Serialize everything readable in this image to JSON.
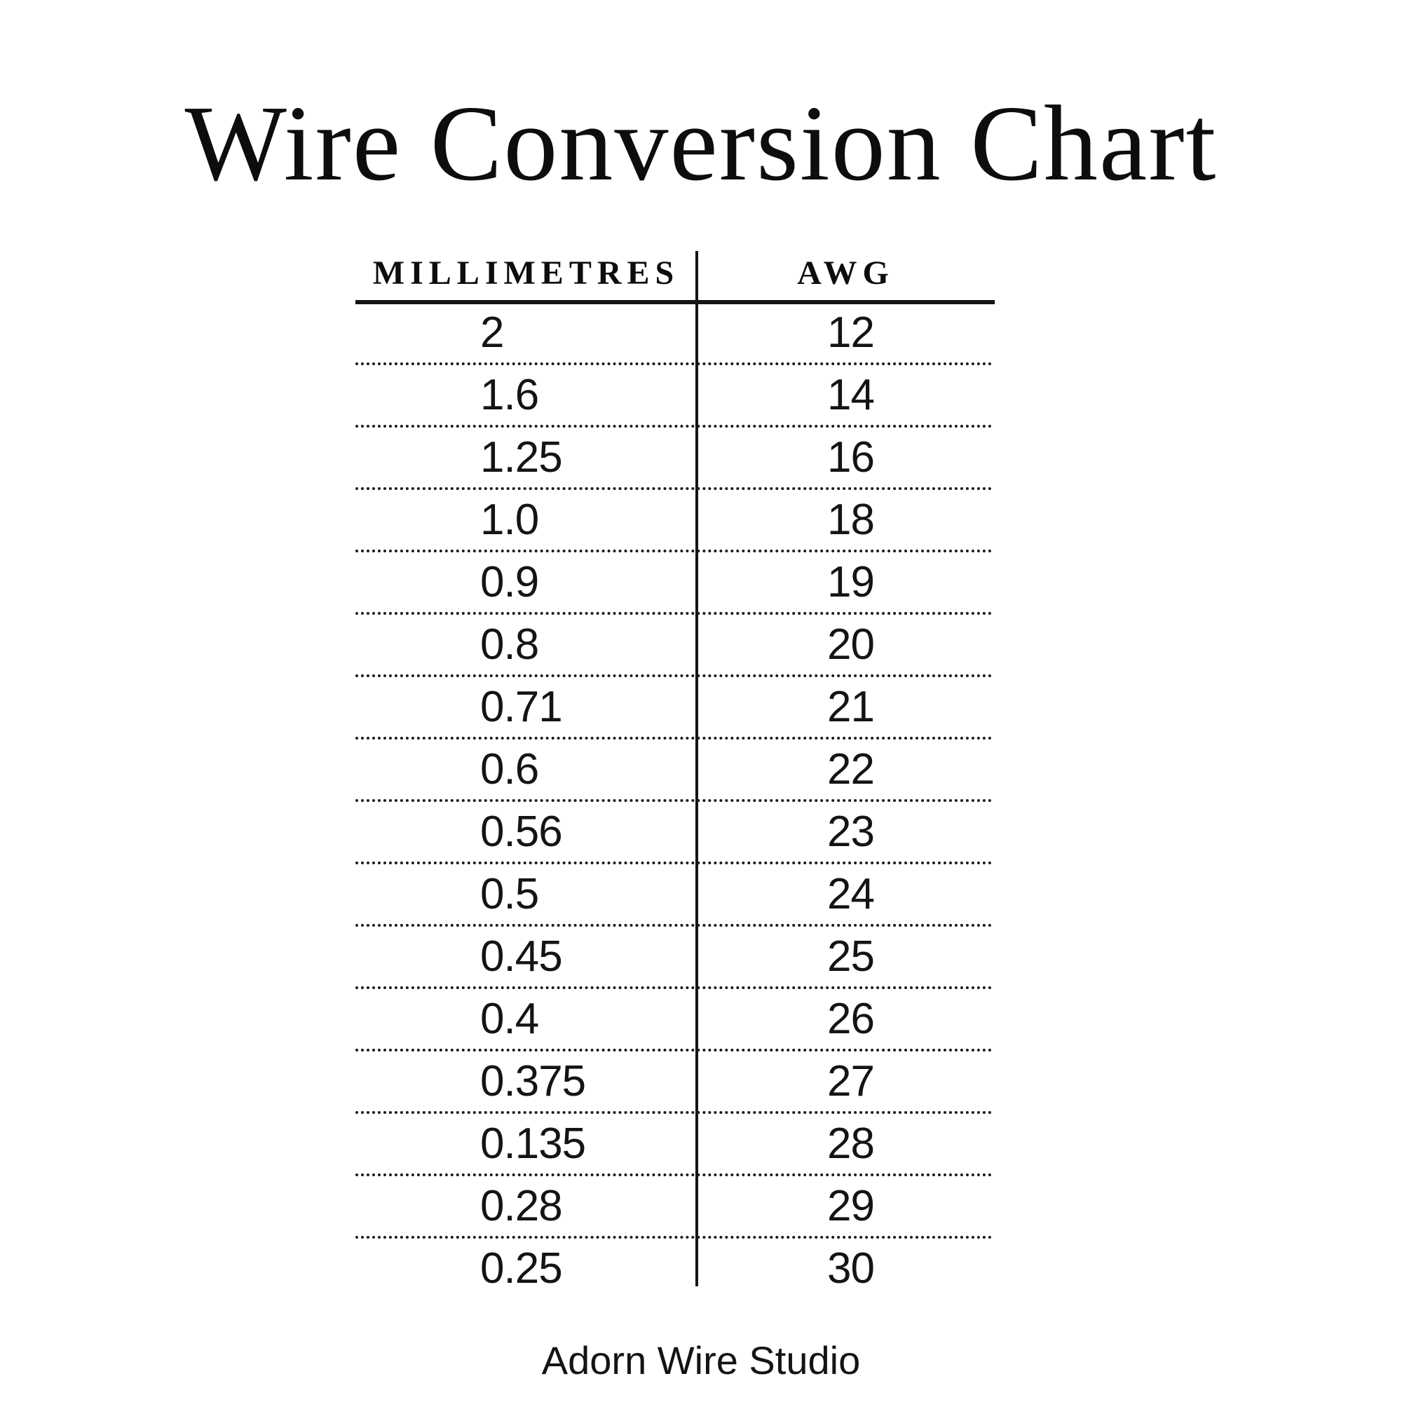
{
  "title": "Wire Conversion Chart",
  "footer": "Adorn Wire Studio",
  "colors": {
    "background": "#ffffff",
    "text": "#111111",
    "rule": "#141414"
  },
  "chart_data": {
    "type": "table",
    "title": "Wire Conversion Chart",
    "columns": [
      "MILLIMETRES",
      "AWG"
    ],
    "rows": [
      [
        "2",
        "12"
      ],
      [
        "1.6",
        "14"
      ],
      [
        "1.25",
        "16"
      ],
      [
        "1.0",
        "18"
      ],
      [
        "0.9",
        "19"
      ],
      [
        "0.8",
        "20"
      ],
      [
        "0.71",
        "21"
      ],
      [
        "0.6",
        "22"
      ],
      [
        "0.56",
        "23"
      ],
      [
        "0.5",
        "24"
      ],
      [
        "0.45",
        "25"
      ],
      [
        "0.4",
        "26"
      ],
      [
        "0.375",
        "27"
      ],
      [
        "0.135",
        "28"
      ],
      [
        "0.28",
        "29"
      ],
      [
        "0.25",
        "30"
      ]
    ],
    "layout": {
      "row_separator": "dotted",
      "header_separator": "solid",
      "column_divider": "vertical-line"
    }
  }
}
